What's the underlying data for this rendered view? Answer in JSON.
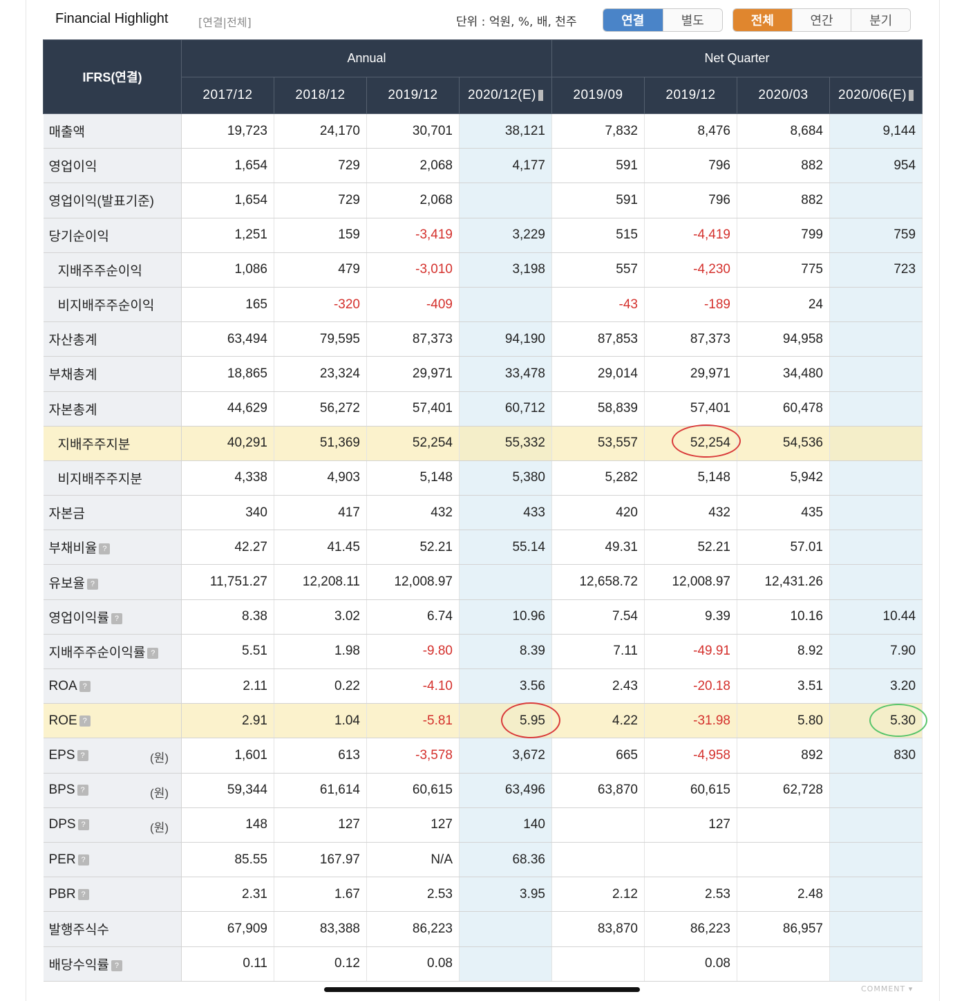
{
  "header": {
    "title": "Financial Highlight",
    "subtitle": "[연결|전체]",
    "unit": "단위 : 억원, %, 배, 천주",
    "toggle1": [
      "연결",
      "별도"
    ],
    "toggle2": [
      "전체",
      "연간",
      "분기"
    ]
  },
  "table": {
    "corner": "IFRS(연결)",
    "group_annual": "Annual",
    "group_quarter": "Net Quarter",
    "columns": [
      "2017/12",
      "2018/12",
      "2019/12",
      "2020/12(E)",
      "2019/09",
      "2019/12",
      "2020/03",
      "2020/06(E)"
    ],
    "rows": [
      {
        "label": "매출액",
        "values": [
          "19,723",
          "24,170",
          "30,701",
          "38,121",
          "7,832",
          "8,476",
          "8,684",
          "9,144"
        ]
      },
      {
        "label": "영업이익",
        "values": [
          "1,654",
          "729",
          "2,068",
          "4,177",
          "591",
          "796",
          "882",
          "954"
        ]
      },
      {
        "label": "영업이익(발표기준)",
        "values": [
          "1,654",
          "729",
          "2,068",
          "",
          "591",
          "796",
          "882",
          ""
        ]
      },
      {
        "label": "당기순이익",
        "values": [
          "1,251",
          "159",
          "-3,419",
          "3,229",
          "515",
          "-4,419",
          "799",
          "759"
        ]
      },
      {
        "label": "지배주주순이익",
        "indent": true,
        "values": [
          "1,086",
          "479",
          "-3,010",
          "3,198",
          "557",
          "-4,230",
          "775",
          "723"
        ]
      },
      {
        "label": "비지배주주순이익",
        "indent": true,
        "values": [
          "165",
          "-320",
          "-409",
          "",
          "-43",
          "-189",
          "24",
          ""
        ]
      },
      {
        "label": "자산총계",
        "values": [
          "63,494",
          "79,595",
          "87,373",
          "94,190",
          "87,853",
          "87,373",
          "94,958",
          ""
        ]
      },
      {
        "label": "부채총계",
        "values": [
          "18,865",
          "23,324",
          "29,971",
          "33,478",
          "29,014",
          "29,971",
          "34,480",
          ""
        ]
      },
      {
        "label": "자본총계",
        "values": [
          "44,629",
          "56,272",
          "57,401",
          "60,712",
          "58,839",
          "57,401",
          "60,478",
          ""
        ]
      },
      {
        "label": "지배주주지분",
        "indent": true,
        "highlight": true,
        "values": [
          "40,291",
          "51,369",
          "52,254",
          "55,332",
          "53,557",
          "52,254",
          "54,536",
          ""
        ]
      },
      {
        "label": "비지배주주지분",
        "indent": true,
        "values": [
          "4,338",
          "4,903",
          "5,148",
          "5,380",
          "5,282",
          "5,148",
          "5,942",
          ""
        ]
      },
      {
        "label": "자본금",
        "values": [
          "340",
          "417",
          "432",
          "433",
          "420",
          "432",
          "435",
          ""
        ]
      },
      {
        "label": "부채비율",
        "help": true,
        "values": [
          "42.27",
          "41.45",
          "52.21",
          "55.14",
          "49.31",
          "52.21",
          "57.01",
          ""
        ]
      },
      {
        "label": "유보율",
        "help": true,
        "values": [
          "11,751.27",
          "12,208.11",
          "12,008.97",
          "",
          "12,658.72",
          "12,008.97",
          "12,431.26",
          ""
        ]
      },
      {
        "label": "영업이익률",
        "help": true,
        "values": [
          "8.38",
          "3.02",
          "6.74",
          "10.96",
          "7.54",
          "9.39",
          "10.16",
          "10.44"
        ]
      },
      {
        "label": "지배주주순이익률",
        "help": true,
        "values": [
          "5.51",
          "1.98",
          "-9.80",
          "8.39",
          "7.11",
          "-49.91",
          "8.92",
          "7.90"
        ]
      },
      {
        "label": "ROA",
        "help": true,
        "values": [
          "2.11",
          "0.22",
          "-4.10",
          "3.56",
          "2.43",
          "-20.18",
          "3.51",
          "3.20"
        ]
      },
      {
        "label": "ROE",
        "help": true,
        "highlight": true,
        "values": [
          "2.91",
          "1.04",
          "-5.81",
          "5.95",
          "4.22",
          "-31.98",
          "5.80",
          "5.30"
        ]
      },
      {
        "label": "EPS",
        "help": true,
        "unit": "(원)",
        "values": [
          "1,601",
          "613",
          "-3,578",
          "3,672",
          "665",
          "-4,958",
          "892",
          "830"
        ]
      },
      {
        "label": "BPS",
        "help": true,
        "unit": "(원)",
        "values": [
          "59,344",
          "61,614",
          "60,615",
          "63,496",
          "63,870",
          "60,615",
          "62,728",
          ""
        ]
      },
      {
        "label": "DPS",
        "help": true,
        "unit": "(원)",
        "values": [
          "148",
          "127",
          "127",
          "140",
          "",
          "127",
          "",
          ""
        ]
      },
      {
        "label": "PER",
        "help": true,
        "values": [
          "85.55",
          "167.97",
          "N/A",
          "68.36",
          "",
          "",
          "",
          ""
        ]
      },
      {
        "label": "PBR",
        "help": true,
        "values": [
          "2.31",
          "1.67",
          "2.53",
          "3.95",
          "2.12",
          "2.53",
          "2.48",
          ""
        ]
      },
      {
        "label": "발행주식수",
        "values": [
          "67,909",
          "83,388",
          "86,223",
          "",
          "83,870",
          "86,223",
          "86,957",
          ""
        ]
      },
      {
        "label": "배당수익률",
        "help": true,
        "values": [
          "0.11",
          "0.12",
          "0.08",
          "",
          "",
          "0.08",
          "",
          ""
        ]
      }
    ]
  },
  "footer": {
    "comment": "COMMENT"
  },
  "colors": {
    "header_bg": "#2f3b4c",
    "estimate_bg": "#e6f2f8",
    "negative": "#d4302c",
    "highlight": "#fbf2cc",
    "btn_blue": "#4a84c8",
    "btn_orange": "#e0862e",
    "circle_red": "#d93a3a",
    "circle_green": "#57c46a"
  }
}
